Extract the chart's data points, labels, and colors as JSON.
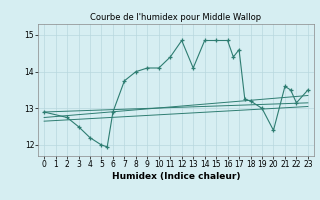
{
  "title": "Courbe de l'humidex pour Middle Wallop",
  "xlabel": "Humidex (Indice chaleur)",
  "bg_color": "#d6eef2",
  "grid_color": "#b8d8de",
  "line_color": "#2e7d72",
  "xlim": [
    -0.5,
    23.5
  ],
  "ylim": [
    11.7,
    15.3
  ],
  "yticks": [
    12,
    13,
    14,
    15
  ],
  "xticks": [
    0,
    1,
    2,
    3,
    4,
    5,
    6,
    7,
    8,
    9,
    10,
    11,
    12,
    13,
    14,
    15,
    16,
    17,
    18,
    19,
    20,
    21,
    22,
    23
  ],
  "line1": [
    [
      0,
      12.9
    ],
    [
      23,
      13.15
    ]
  ],
  "line2": [
    [
      0,
      12.75
    ],
    [
      23,
      13.35
    ]
  ],
  "line3": [
    [
      0,
      12.65
    ],
    [
      23,
      13.05
    ]
  ],
  "zigzag": [
    [
      0,
      12.9
    ],
    [
      2,
      12.75
    ],
    [
      3,
      12.5
    ],
    [
      4,
      12.2
    ],
    [
      5,
      12.0
    ],
    [
      5.5,
      11.95
    ],
    [
      6,
      12.9
    ],
    [
      7,
      13.75
    ],
    [
      8,
      14.0
    ],
    [
      9,
      14.1
    ],
    [
      10,
      14.1
    ],
    [
      11,
      14.4
    ],
    [
      12,
      14.85
    ],
    [
      13,
      14.1
    ],
    [
      14,
      14.85
    ],
    [
      15,
      14.85
    ],
    [
      16,
      14.85
    ],
    [
      16.5,
      14.4
    ],
    [
      17,
      14.6
    ],
    [
      17.5,
      13.25
    ],
    [
      18,
      13.2
    ],
    [
      19,
      13.0
    ],
    [
      20,
      12.4
    ],
    [
      21,
      13.6
    ],
    [
      21.5,
      13.5
    ],
    [
      22,
      13.15
    ],
    [
      23,
      13.5
    ]
  ]
}
